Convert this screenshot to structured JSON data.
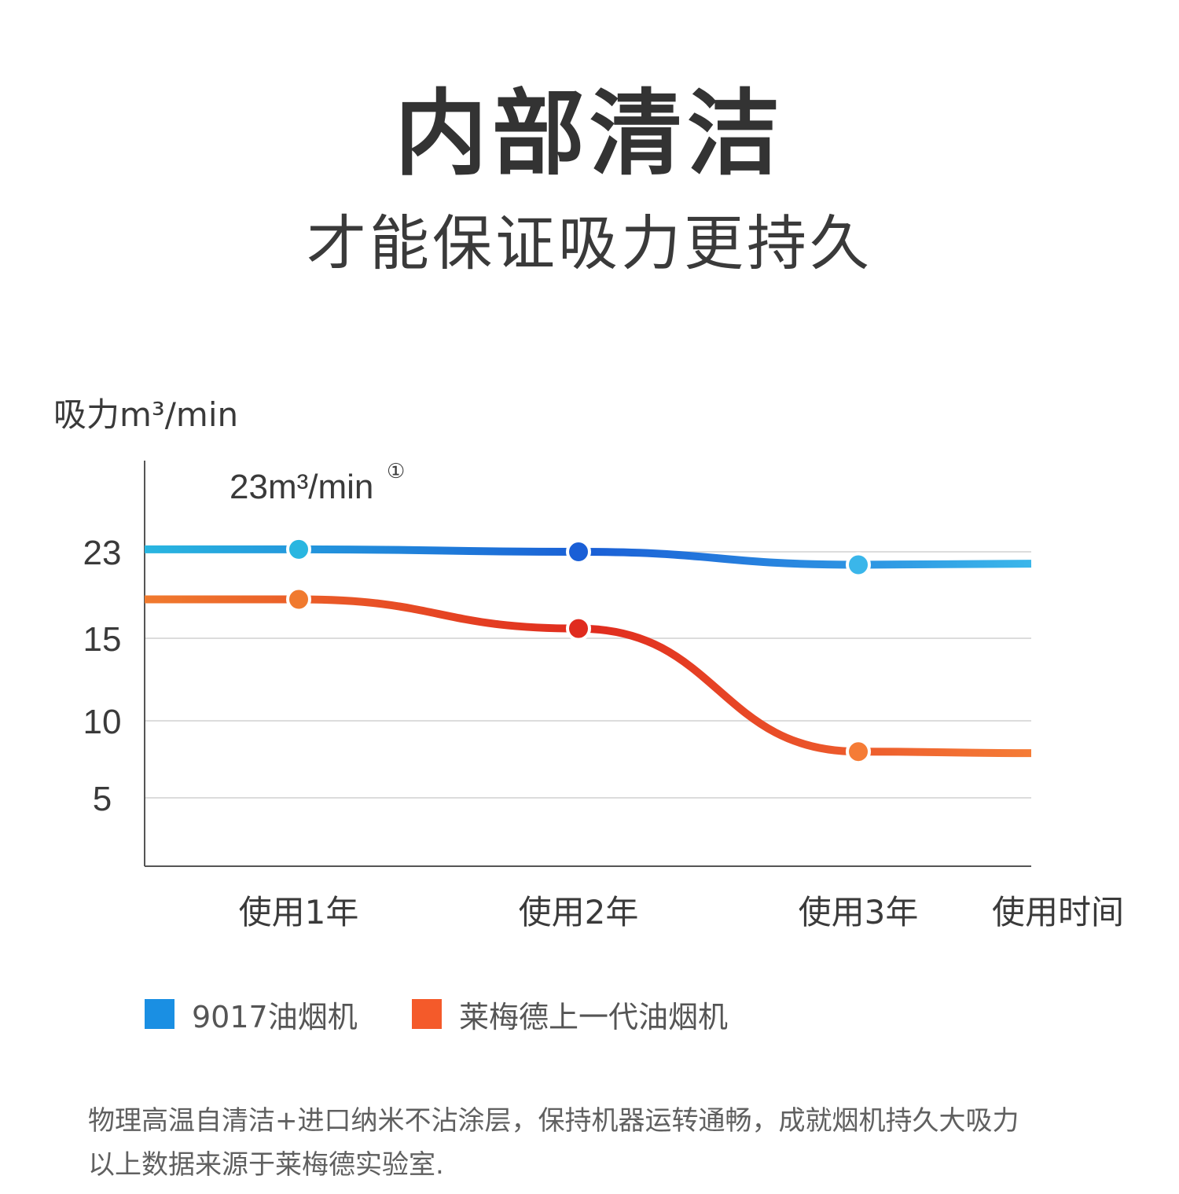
{
  "header": {
    "title": "内部清洁",
    "subtitle": "才能保证吸力更持久"
  },
  "chart_data": {
    "type": "line",
    "ylabel": "吸力m³/min",
    "xlabel": "使用时间",
    "categories": [
      "使用1年",
      "使用2年",
      "使用3年"
    ],
    "yticks": [
      23,
      15,
      10,
      5
    ],
    "ylim": [
      0,
      27
    ],
    "grid": true,
    "annotation": "23m³/min",
    "annotation_mark": "①",
    "series": [
      {
        "name": "9017油烟机",
        "values": [
          23.3,
          23.0,
          21.8
        ],
        "tail": 21.9,
        "colors": [
          "#29b6e0",
          "#1a5fd6",
          "#3ab6ea"
        ],
        "legend_color": "#1a8fe3"
      },
      {
        "name": "莱梅德上一代油烟机",
        "values": [
          18.6,
          15.9,
          8.0
        ],
        "tail": 7.9,
        "colors": [
          "#f07a2e",
          "#e02b1e",
          "#f57c36"
        ],
        "legend_color": "#f45a2a"
      }
    ]
  },
  "footnote": {
    "line1": "物理高温自清洁+进口纳米不沾涂层，保持机器运转通畅，成就烟机持久大吸力",
    "line2": "以上数据来源于莱梅德实验室."
  }
}
